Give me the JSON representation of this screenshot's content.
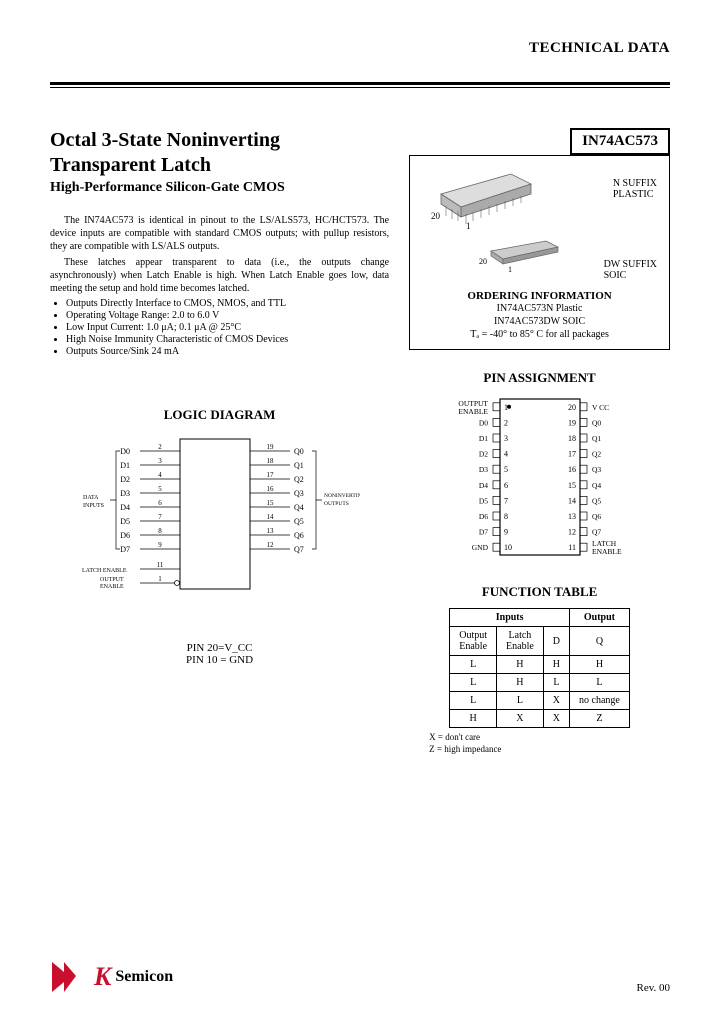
{
  "header": {
    "right": "TECHNICAL DATA"
  },
  "title_l1": "Octal 3-State Noninverting",
  "title_l2": "Transparent Latch",
  "subtitle": "High-Performance Silicon-Gate CMOS",
  "part_number": "IN74AC573",
  "para1": "The IN74AC573 is identical in pinout to the LS/ALS573, HC/HCT573. The device inputs are compatible with standard CMOS outputs; with pullup resistors, they are compatible with LS/ALS outputs.",
  "para2": "These latches appear transparent to data (i.e., the outputs change asynchronously) when Latch Enable is high. When Latch Enable goes low, data meeting the setup and hold time becomes latched.",
  "features": [
    "Outputs Directly Interface to CMOS, NMOS, and TTL",
    "Operating Voltage Range: 2.0 to 6.0 V",
    "Low Input Current: 1.0 μA; 0.1 μA @ 25°C",
    "High Noise Immunity Characteristic of CMOS Devices",
    "Outputs Source/Sink 24 mA"
  ],
  "pkg": {
    "n_suffix": "N SUFFIX",
    "plastic": "PLASTIC",
    "dw_suffix": "DW SUFFIX",
    "soic": "SOIC",
    "pin20": "20",
    "pin1": "1",
    "order_head": "ORDERING INFORMATION",
    "order1": "IN74AC573N Plastic",
    "order2": "IN74AC573DW SOIC",
    "temp": "Tₐ = -40° to 85° C for all packages"
  },
  "logic": {
    "head": "LOGIC DIAGRAM",
    "data_inputs": "DATA\nINPUTS",
    "nonout": "NONINVERTING\nOUTPUTS",
    "latch_en": "LATCH ENABLE",
    "out_en": "OUTPUT\nENABLE",
    "pins_left": [
      "D0",
      "D1",
      "D2",
      "D3",
      "D4",
      "D5",
      "D6",
      "D7"
    ],
    "nums_left": [
      "2",
      "3",
      "4",
      "5",
      "6",
      "7",
      "8",
      "9"
    ],
    "pins_right": [
      "Q0",
      "Q1",
      "Q2",
      "Q3",
      "Q4",
      "Q5",
      "Q6",
      "Q7"
    ],
    "nums_right": [
      "19",
      "18",
      "17",
      "16",
      "15",
      "14",
      "13",
      "12"
    ],
    "le_num": "11",
    "oe_num": "1",
    "caption1": "PIN 20=V_CC",
    "caption2": "PIN 10 = GND"
  },
  "pin_assign": {
    "head": "PIN ASSIGNMENT",
    "left": [
      {
        "lbl": "OUTPUT\nENABLE",
        "n": "1"
      },
      {
        "lbl": "D0",
        "n": "2"
      },
      {
        "lbl": "D1",
        "n": "3"
      },
      {
        "lbl": "D2",
        "n": "4"
      },
      {
        "lbl": "D3",
        "n": "5"
      },
      {
        "lbl": "D4",
        "n": "6"
      },
      {
        "lbl": "D5",
        "n": "7"
      },
      {
        "lbl": "D6",
        "n": "8"
      },
      {
        "lbl": "D7",
        "n": "9"
      },
      {
        "lbl": "GND",
        "n": "10"
      }
    ],
    "right": [
      {
        "n": "20",
        "lbl": "V CC"
      },
      {
        "n": "19",
        "lbl": "Q0"
      },
      {
        "n": "18",
        "lbl": "Q1"
      },
      {
        "n": "17",
        "lbl": "Q2"
      },
      {
        "n": "16",
        "lbl": "Q3"
      },
      {
        "n": "15",
        "lbl": "Q4"
      },
      {
        "n": "14",
        "lbl": "Q5"
      },
      {
        "n": "13",
        "lbl": "Q6"
      },
      {
        "n": "12",
        "lbl": "Q7"
      },
      {
        "n": "11",
        "lbl": "LATCH\nENABLE"
      }
    ]
  },
  "func": {
    "head": "FUNCTION TABLE",
    "cols_group": [
      "Inputs",
      "Output"
    ],
    "cols": [
      "Output\nEnable",
      "Latch\nEnable",
      "D",
      "Q"
    ],
    "rows": [
      [
        "L",
        "H",
        "H",
        "H"
      ],
      [
        "L",
        "H",
        "L",
        "L"
      ],
      [
        "L",
        "L",
        "X",
        "no change"
      ],
      [
        "H",
        "X",
        "X",
        "Z"
      ]
    ],
    "note1": "X = don't care",
    "note2": "Z = high impedance"
  },
  "footer": {
    "logo1": "K",
    "logo2": "Semicon",
    "rev": "Rev. 00"
  }
}
